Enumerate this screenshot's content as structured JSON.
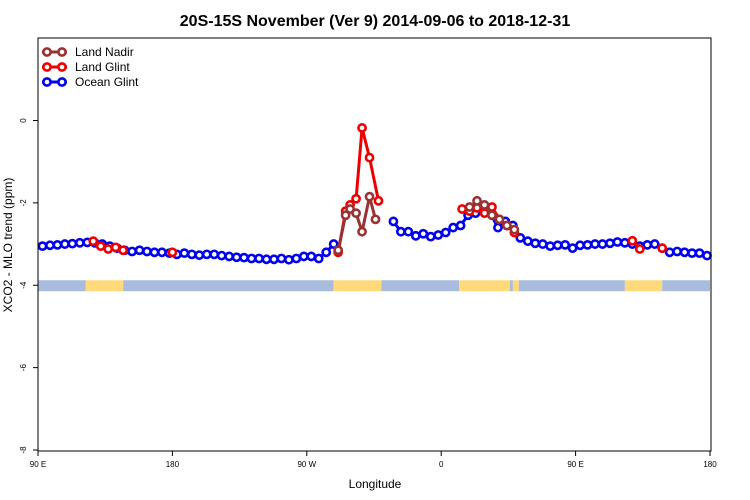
{
  "chart_data": {
    "type": "line",
    "title": "20S-15S November (Ver 9)   2014-09-06 to 2018-12-31",
    "xlabel": "Longitude",
    "ylabel": "XCO2 - MLO trend (ppm)",
    "x_ticks": [
      {
        "pos": 0,
        "label": "90 E"
      },
      {
        "pos": 90,
        "label": "180"
      },
      {
        "pos": 180,
        "label": "90 W"
      },
      {
        "pos": 270,
        "label": "0"
      },
      {
        "pos": 360,
        "label": "90 E"
      },
      {
        "pos": 450,
        "label": "180"
      }
    ],
    "xlim": [
      0,
      450
    ],
    "y_ticks": [
      0,
      -2,
      -4,
      -6,
      -8
    ],
    "ylim": [
      -8,
      2
    ],
    "grid": false,
    "legend_position": "top-left",
    "land_color": "#FFD97A",
    "ocean_color": "#A9BCDD",
    "band": [
      {
        "x0": 0,
        "x1": 32,
        "type": "ocean"
      },
      {
        "x0": 32,
        "x1": 57,
        "type": "land"
      },
      {
        "x0": 57,
        "x1": 198,
        "type": "ocean"
      },
      {
        "x0": 198,
        "x1": 230,
        "type": "land"
      },
      {
        "x0": 230,
        "x1": 282,
        "type": "ocean"
      },
      {
        "x0": 282,
        "x1": 316,
        "type": "land"
      },
      {
        "x0": 316,
        "x1": 318,
        "type": "ocean"
      },
      {
        "x0": 318,
        "x1": 322,
        "type": "land"
      },
      {
        "x0": 322,
        "x1": 393,
        "type": "ocean"
      },
      {
        "x0": 393,
        "x1": 418,
        "type": "land"
      },
      {
        "x0": 418,
        "x1": 450,
        "type": "ocean"
      }
    ],
    "series": [
      {
        "name": "Ocean Glint",
        "color": "#0000EE",
        "points": [
          [
            3,
            -3.05
          ],
          [
            8,
            -3.03
          ],
          [
            13,
            -3.02
          ],
          [
            18,
            -3.0
          ],
          [
            23,
            -2.99
          ],
          [
            28,
            -2.97
          ],
          [
            33,
            -2.96
          ],
          [
            38,
            -2.97
          ],
          [
            43,
            -3.0
          ],
          [
            48,
            -3.05
          ],
          [
            53,
            -3.1
          ],
          [
            58,
            -3.15
          ],
          [
            63,
            -3.18
          ],
          [
            68,
            -3.15
          ],
          [
            73,
            -3.18
          ],
          [
            78,
            -3.2
          ],
          [
            83,
            -3.2
          ],
          [
            88,
            -3.22
          ],
          [
            93,
            -3.25
          ],
          [
            98,
            -3.22
          ],
          [
            103,
            -3.25
          ],
          [
            108,
            -3.27
          ],
          [
            113,
            -3.25
          ],
          [
            118,
            -3.25
          ],
          [
            123,
            -3.28
          ],
          [
            128,
            -3.3
          ],
          [
            133,
            -3.32
          ],
          [
            138,
            -3.33
          ],
          [
            143,
            -3.35
          ],
          [
            148,
            -3.35
          ],
          [
            153,
            -3.37
          ],
          [
            158,
            -3.37
          ],
          [
            163,
            -3.35
          ],
          [
            168,
            -3.38
          ],
          [
            173,
            -3.35
          ],
          [
            178,
            -3.3
          ],
          [
            183,
            -3.3
          ],
          [
            188,
            -3.35
          ],
          [
            193,
            -3.2
          ],
          [
            198,
            -3.0
          ],
          [
            238,
            -2.45
          ],
          [
            243,
            -2.7
          ],
          [
            248,
            -2.7
          ],
          [
            253,
            -2.8
          ],
          [
            258,
            -2.75
          ],
          [
            263,
            -2.82
          ],
          [
            268,
            -2.78
          ],
          [
            273,
            -2.72
          ],
          [
            278,
            -2.6
          ],
          [
            283,
            -2.55
          ],
          [
            288,
            -2.3
          ],
          [
            293,
            -2.25
          ],
          [
            298,
            -2.2
          ],
          [
            303,
            -2.25
          ],
          [
            308,
            -2.6
          ],
          [
            313,
            -2.45
          ],
          [
            318,
            -2.55
          ],
          [
            323,
            -2.85
          ],
          [
            328,
            -2.93
          ],
          [
            333,
            -2.98
          ],
          [
            338,
            -3.0
          ],
          [
            343,
            -3.05
          ],
          [
            348,
            -3.03
          ],
          [
            353,
            -3.02
          ],
          [
            358,
            -3.1
          ],
          [
            363,
            -3.03
          ],
          [
            368,
            -3.02
          ],
          [
            373,
            -3.0
          ],
          [
            378,
            -3.0
          ],
          [
            383,
            -2.98
          ],
          [
            388,
            -2.95
          ],
          [
            393,
            -2.97
          ],
          [
            398,
            -3.0
          ],
          [
            403,
            -3.05
          ],
          [
            408,
            -3.02
          ],
          [
            413,
            -3.0
          ],
          [
            418,
            -3.1
          ],
          [
            423,
            -3.2
          ],
          [
            428,
            -3.18
          ],
          [
            433,
            -3.2
          ],
          [
            438,
            -3.22
          ],
          [
            443,
            -3.22
          ],
          [
            448,
            -3.28
          ]
        ]
      },
      {
        "name": "Land Glint",
        "color": "#EE0000",
        "points": [
          [
            37,
            -2.93
          ],
          [
            42,
            -3.05
          ],
          [
            47,
            -3.12
          ],
          [
            52,
            -3.08
          ],
          [
            57,
            -3.15
          ],
          [
            90,
            -3.2
          ],
          [
            201,
            -3.2
          ],
          [
            206,
            -2.2
          ],
          [
            209,
            -2.05
          ],
          [
            213,
            -1.9
          ],
          [
            217,
            -0.18
          ],
          [
            222,
            -0.9
          ],
          [
            228,
            -1.95
          ],
          [
            284,
            -2.15
          ],
          [
            289,
            -2.2
          ],
          [
            294,
            -2.12
          ],
          [
            299,
            -2.25
          ],
          [
            304,
            -2.1
          ],
          [
            309,
            -2.4
          ],
          [
            314,
            -2.55
          ],
          [
            319,
            -2.72
          ],
          [
            398,
            -2.92
          ],
          [
            403,
            -3.12
          ],
          [
            418,
            -3.1
          ]
        ]
      },
      {
        "name": "Land Nadir",
        "color": "#993333",
        "points": [
          [
            201,
            -3.15
          ],
          [
            206,
            -2.3
          ],
          [
            209,
            -2.15
          ],
          [
            213,
            -2.25
          ],
          [
            217,
            -2.7
          ],
          [
            222,
            -1.85
          ],
          [
            226,
            -2.4
          ],
          [
            289,
            -2.1
          ],
          [
            294,
            -1.95
          ],
          [
            299,
            -2.05
          ],
          [
            304,
            -2.3
          ],
          [
            309,
            -2.4
          ],
          [
            314,
            -2.55
          ],
          [
            319,
            -2.65
          ]
        ]
      }
    ]
  }
}
